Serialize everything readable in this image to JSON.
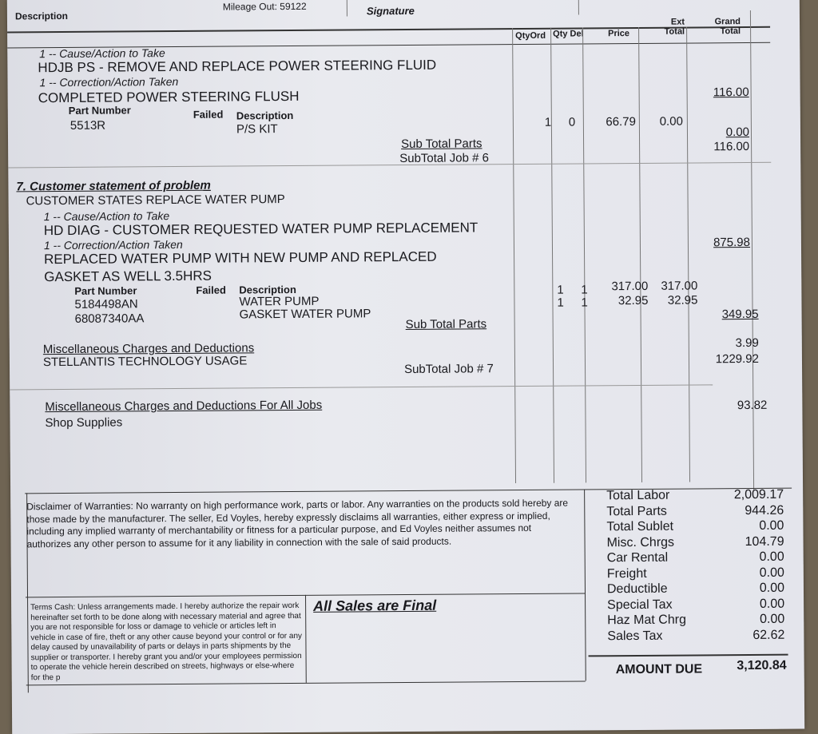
{
  "header": {
    "description_label": "Description",
    "mileage_out": "Mileage Out: 59122",
    "signature_label": "Signature"
  },
  "columns": {
    "qty_ord": "QtyOrd",
    "qty_del": "Qty Del",
    "price": "Price",
    "ext_total": "Ext Total",
    "grand_total": "Grand Total"
  },
  "job6": {
    "cause_label": "1 -- Cause/Action to Take",
    "cause": "HDJB PS - REMOVE AND REPLACE POWER STEERING FLUID",
    "correction_label": "1 -- Correction/Action Taken",
    "correction": "COMPLETED POWER STEERING FLUSH",
    "labor_total": "116.00",
    "part_number_label": "Part Number",
    "failed_label": "Failed",
    "description_label": "Description",
    "parts": [
      {
        "number": "5513R",
        "description": "P/S KIT",
        "qty_ord": "1",
        "qty_del": "0",
        "price": "66.79",
        "ext": "0.00"
      }
    ],
    "sub_total_parts_label": "Sub Total Parts",
    "sub_total_parts": "0.00",
    "subtotal_label": "SubTotal Job # 6",
    "subtotal": "116.00"
  },
  "job7": {
    "title": "7. Customer statement of problem",
    "statement": "CUSTOMER STATES REPLACE WATER PUMP",
    "cause_label": "1 -- Cause/Action to Take",
    "cause": "HD DIAG - CUSTOMER REQUESTED WATER PUMP REPLACEMENT",
    "correction_label": "1 -- Correction/Action Taken",
    "correction_line1": "REPLACED WATER PUMP WITH NEW PUMP AND REPLACED",
    "correction_line2": "GASKET AS WELL  3.5HRS",
    "labor_total": "875.98",
    "part_number_label": "Part Number",
    "failed_label": "Failed",
    "description_label": "Description",
    "parts": [
      {
        "number": "5184498AN",
        "description": "WATER PUMP",
        "qty_ord": "1",
        "qty_del": "1",
        "price": "317.00",
        "ext": "317.00"
      },
      {
        "number": "68087340AA",
        "description": "GASKET WATER PUMP",
        "qty_ord": "1",
        "qty_del": "1",
        "price": "32.95",
        "ext": "32.95"
      }
    ],
    "sub_total_parts_label": "Sub Total Parts",
    "sub_total_parts": "349.95",
    "misc_label": "Miscellaneous Charges and Deductions",
    "misc_item": "STELLANTIS TECHNOLOGY USAGE",
    "misc_amount": "3.99",
    "subtotal_label": "SubTotal Job # 7",
    "subtotal": "1229.92"
  },
  "all_jobs": {
    "label": "Miscellaneous Charges and Deductions For All Jobs",
    "item": "Shop Supplies",
    "amount": "93.82"
  },
  "disclaimer": "Disclaimer of Warranties: No warranty on high performance work, parts or labor. Any warranties on the products sold hereby are those made by the manufacturer. The seller, Ed Voyles, hereby expressly disclaims all warranties, either express or implied, including any implied warranty of merchantability or fitness for a particular purpose, and Ed Voyles neither assumes not authorizes any other person to assume for it any liability in connection with the sale of said products.",
  "terms": "Terms Cash:  Unless arrangements made.  I hereby authorize the repair work hereinafter set forth to be done along with necessary material and agree that you are not responsible for loss or damage to vehicle or articles left in vehicle in case of fire, theft or any other cause beyond your control or for any delay caused by unavailability of parts or delays in parts shipments by the supplier or transporter. I hereby grant you and/or your employees permission to operate the vehicle herein described on streets, highways or else-where for the p",
  "sales_final": "All Sales are Final",
  "totals": [
    {
      "label": "Total Labor",
      "value": "2,009.17"
    },
    {
      "label": "Total Parts",
      "value": "944.26"
    },
    {
      "label": "Total Sublet",
      "value": "0.00"
    },
    {
      "label": "Misc. Chrgs",
      "value": "104.79"
    },
    {
      "label": "Car Rental",
      "value": "0.00"
    },
    {
      "label": "Freight",
      "value": "0.00"
    },
    {
      "label": "Deductible",
      "value": "0.00"
    },
    {
      "label": "Special Tax",
      "value": "0.00"
    },
    {
      "label": "Haz Mat Chrg",
      "value": "0.00"
    },
    {
      "label": "Sales Tax",
      "value": "62.62"
    }
  ],
  "amount_due_label": "AMOUNT DUE",
  "amount_due": "3,120.84"
}
